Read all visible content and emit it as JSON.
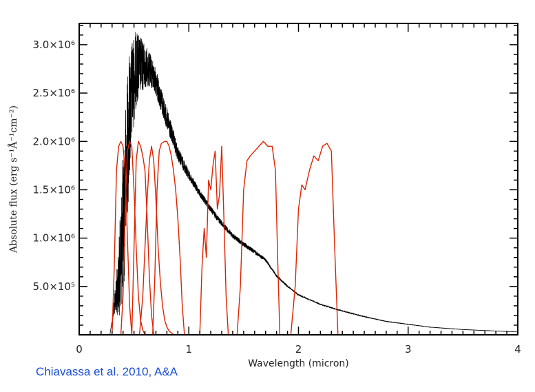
{
  "chart_data": {
    "type": "line",
    "title": "",
    "xlabel": "Wavelength (micron)",
    "ylabel": "Absolute flux (erg s⁻¹Å⁻¹cm⁻²)",
    "xlim": [
      0,
      4
    ],
    "ylim": [
      0,
      3220000.0
    ],
    "grid": false,
    "legend": "none",
    "x_ticks": [
      0,
      1,
      2,
      3,
      4
    ],
    "x_tick_labels": [
      "0",
      "1",
      "2",
      "3",
      "4"
    ],
    "y_ticks": [
      500000,
      1000000,
      1500000,
      2000000,
      2500000,
      3000000
    ],
    "y_tick_labels": [
      "5.0×10⁵",
      "1.0×10⁶",
      "1.5×10⁶",
      "2.0×10⁶",
      "2.5×10⁶",
      "3.0×10⁶"
    ],
    "series": [
      {
        "color": "#000000",
        "x": [
          0.28,
          0.3,
          0.33,
          0.36,
          0.38,
          0.4,
          0.42,
          0.44,
          0.46,
          0.48,
          0.5,
          0.52,
          0.55,
          0.58,
          0.6,
          0.65,
          0.7,
          0.75,
          0.8,
          0.85,
          0.9,
          1.0,
          1.1,
          1.2,
          1.3,
          1.4,
          1.5,
          1.6,
          1.7,
          1.8,
          1.9,
          2.0,
          2.2,
          2.4,
          2.6,
          2.8,
          3.0,
          3.2,
          3.5,
          4.0
        ],
        "y": [
          0,
          150000,
          500000,
          900000,
          1400000,
          1900000,
          2300000,
          2700000,
          2950000,
          3050000,
          3100000,
          3150000,
          3100000,
          3050000,
          3000000,
          2900000,
          2750000,
          2550000,
          2350000,
          2150000,
          1950000,
          1700000,
          1500000,
          1330000,
          1180000,
          1050000,
          960000,
          880000,
          790000,
          620000,
          510000,
          420000,
          320000,
          250000,
          190000,
          140000,
          110000,
          80000,
          55000,
          30000
        ],
        "noise": [
          0,
          0.2,
          0.6,
          0.8,
          0.85,
          0.8,
          0.7,
          0.55,
          0.45,
          0.35,
          0.3,
          0.25,
          0.2,
          0.18,
          0.15,
          0.12,
          0.1,
          0.1,
          0.1,
          0.09,
          0.08,
          0.06,
          0.05,
          0.05,
          0.05,
          0.05,
          0.05,
          0.05,
          0.04,
          0.04,
          0.03,
          0.03,
          0.03,
          0.03,
          0.02,
          0.02,
          0.02,
          0.02,
          0.02,
          0.02
        ]
      },
      {
        "color": "#dd2200",
        "x": [
          0.3,
          0.32,
          0.34,
          0.36,
          0.38,
          0.4,
          0.42,
          0.44,
          0.46,
          0.48
        ],
        "y": [
          0,
          700000,
          1700000,
          1950000,
          2000000,
          1950000,
          1700000,
          1000000,
          300000,
          0
        ]
      },
      {
        "color": "#dd2200",
        "x": [
          0.38,
          0.4,
          0.42,
          0.44,
          0.46,
          0.48,
          0.5,
          0.52,
          0.54,
          0.56,
          0.58,
          0.6
        ],
        "y": [
          0,
          400000,
          1300000,
          1900000,
          2000000,
          1950000,
          1500000,
          900000,
          400000,
          150000,
          50000,
          0
        ]
      },
      {
        "color": "#dd2200",
        "x": [
          0.48,
          0.5,
          0.52,
          0.54,
          0.56,
          0.58,
          0.6,
          0.62,
          0.64,
          0.66,
          0.68
        ],
        "y": [
          0,
          900000,
          1800000,
          2000000,
          1950000,
          1850000,
          1700000,
          1200000,
          600000,
          200000,
          0
        ]
      },
      {
        "color": "#dd2200",
        "x": [
          0.55,
          0.58,
          0.6,
          0.62,
          0.64,
          0.66,
          0.68,
          0.7,
          0.72,
          0.74,
          0.76,
          0.78,
          0.8,
          0.82,
          0.84,
          0.86,
          0.88
        ],
        "y": [
          0,
          400000,
          900000,
          1400000,
          1800000,
          1950000,
          1800000,
          1400000,
          900000,
          550000,
          300000,
          150000,
          80000,
          40000,
          20000,
          5000,
          0
        ]
      },
      {
        "color": "#dd2200",
        "x": [
          0.67,
          0.69,
          0.71,
          0.73,
          0.75,
          0.78,
          0.8,
          0.82,
          0.84,
          0.86,
          0.88,
          0.9,
          0.92,
          0.94,
          0.96
        ],
        "y": [
          0,
          600000,
          1500000,
          1900000,
          1980000,
          2000000,
          2000000,
          1950000,
          1850000,
          1700000,
          1500000,
          1200000,
          800000,
          300000,
          0
        ]
      },
      {
        "color": "#dd2200",
        "x": [
          1.1,
          1.12,
          1.14,
          1.16,
          1.18,
          1.2,
          1.22,
          1.24,
          1.26,
          1.28,
          1.3,
          1.32,
          1.34,
          1.36
        ],
        "y": [
          0,
          700000,
          1100000,
          800000,
          1600000,
          1500000,
          1750000,
          1900000,
          1300000,
          1450000,
          1950000,
          1200000,
          400000,
          0
        ]
      },
      {
        "color": "#dd2200",
        "x": [
          1.44,
          1.47,
          1.5,
          1.53,
          1.56,
          1.6,
          1.64,
          1.68,
          1.72,
          1.76,
          1.79,
          1.81,
          1.83
        ],
        "y": [
          0,
          500000,
          1500000,
          1800000,
          1850000,
          1900000,
          1950000,
          2000000,
          1950000,
          1950000,
          1700000,
          800000,
          0
        ]
      },
      {
        "color": "#dd2200",
        "x": [
          1.93,
          1.97,
          2.0,
          2.03,
          2.06,
          2.1,
          2.14,
          2.18,
          2.22,
          2.26,
          2.3,
          2.33,
          2.36
        ],
        "y": [
          0,
          500000,
          1300000,
          1550000,
          1500000,
          1700000,
          1850000,
          1800000,
          1950000,
          1980000,
          1900000,
          900000,
          0
        ]
      }
    ]
  },
  "citation": "Chiavassa et al. 2010, A&A"
}
